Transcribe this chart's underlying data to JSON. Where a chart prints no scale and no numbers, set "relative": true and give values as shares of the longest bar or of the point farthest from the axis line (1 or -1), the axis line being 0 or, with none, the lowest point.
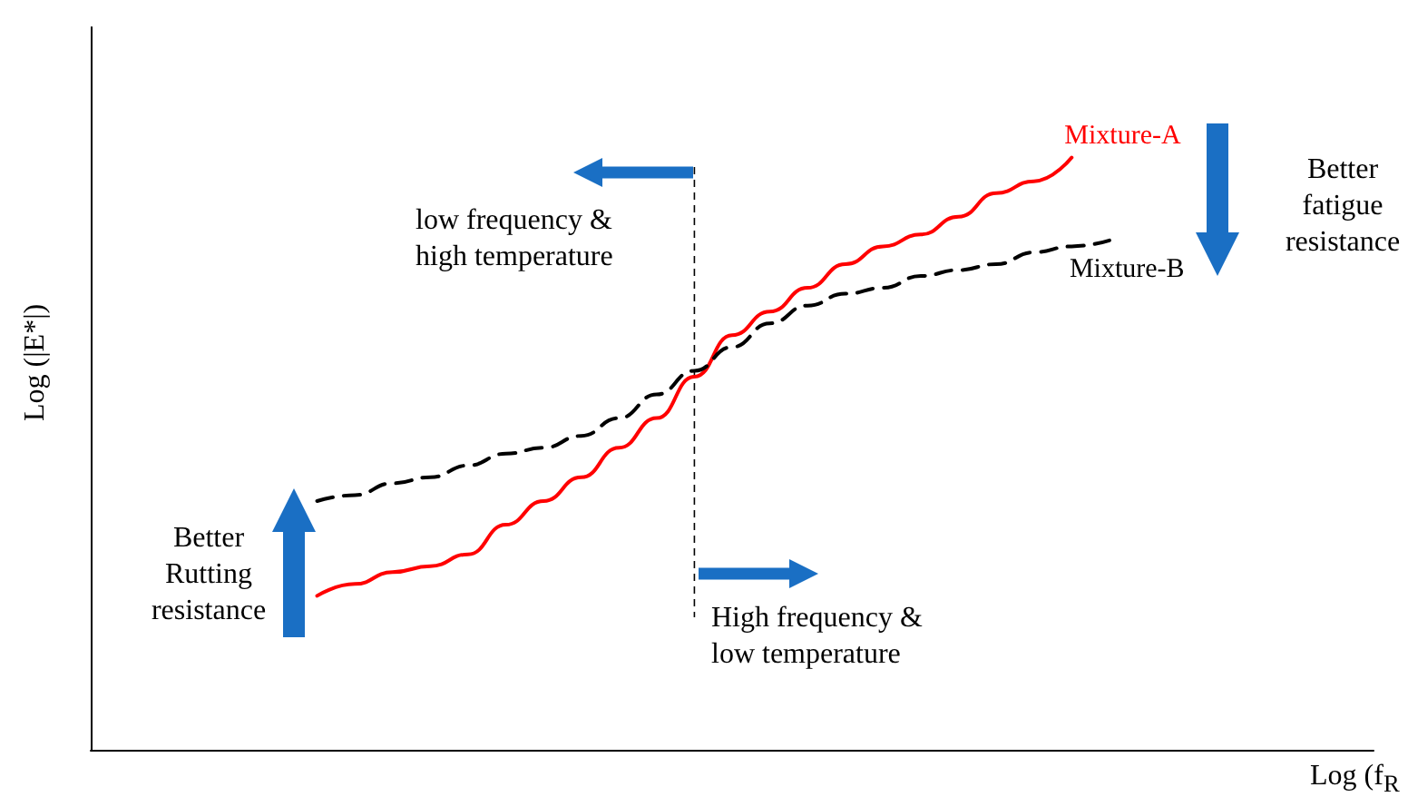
{
  "chart_data": {
    "type": "line",
    "relative": true,
    "xlabel": "Log (f$_{R}$",
    "ylabel": "Log (|E*|)",
    "legend": false,
    "grid": false,
    "marker": "none",
    "categories": [
      null,
      null,
      null,
      null,
      null,
      null,
      null,
      null,
      null,
      null,
      null,
      null,
      null,
      null,
      null,
      null,
      null,
      null,
      null,
      null,
      null,
      null,
      null,
      null,
      null,
      null,
      null,
      null,
      null,
      null,
      null,
      null,
      null,
      null,
      null
    ],
    "series": [
      {
        "name": "Mixture-A",
        "color": "#ff0000",
        "line_style": "solid",
        "values": [
          null,
          null,
          null,
          null,
          null,
          null,
          0.26,
          0.28,
          0.3,
          0.31,
          0.33,
          0.38,
          0.42,
          0.46,
          0.51,
          0.56,
          0.63,
          0.7,
          0.74,
          0.78,
          0.82,
          0.85,
          0.87,
          0.9,
          0.94,
          0.96,
          1.0,
          null,
          null,
          null,
          null,
          null,
          null,
          null,
          null
        ]
      },
      {
        "name": "Mixture-B",
        "color": "#000000",
        "line_style": "dashed",
        "values": [
          null,
          null,
          null,
          null,
          null,
          null,
          0.42,
          0.43,
          0.45,
          0.46,
          0.48,
          0.5,
          0.51,
          0.53,
          0.56,
          0.6,
          0.64,
          0.68,
          0.72,
          0.75,
          0.77,
          0.78,
          0.8,
          0.81,
          0.82,
          0.84,
          0.85,
          0.86,
          null,
          null,
          null,
          null,
          null,
          null,
          null
        ]
      }
    ],
    "annotations": [
      "low frequency & high temperature",
      "High frequency & low temperature",
      "Better Rutting resistance",
      "Better fatigue resistance"
    ]
  }
}
